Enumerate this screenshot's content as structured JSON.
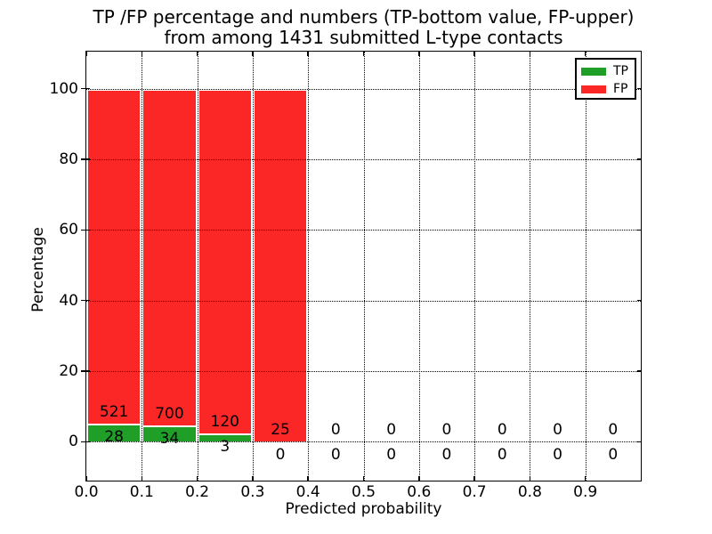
{
  "title": {
    "line1": "TP /FP percentage and numbers (TP-bottom value, FP-upper)",
    "line2": "from among 1431 submitted L-type contacts"
  },
  "chart_data": {
    "type": "bar",
    "stacked": true,
    "percent_normalized": true,
    "title": "TP /FP percentage and numbers (TP-bottom value, FP-upper) from among 1431 submitted L-type contacts",
    "xlabel": "Predicted probability",
    "ylabel": "Percentage",
    "total_submitted_contacts": 1431,
    "bin_edges": [
      0.0,
      0.1,
      0.2,
      0.3,
      0.4,
      0.5,
      0.6,
      0.7,
      0.8,
      0.9,
      1.0
    ],
    "x_tick_labels": [
      "0.0",
      "0.1",
      "0.2",
      "0.3",
      "0.4",
      "0.5",
      "0.6",
      "0.7",
      "0.8",
      "0.9"
    ],
    "x_tick_values": [
      0.0,
      0.1,
      0.2,
      0.3,
      0.4,
      0.5,
      0.6,
      0.7,
      0.8,
      0.9
    ],
    "y_tick_labels": [
      "0",
      "20",
      "40",
      "60",
      "80",
      "100"
    ],
    "y_tick_values": [
      0,
      20,
      40,
      60,
      80,
      100
    ],
    "xlim": [
      0.0,
      1.0
    ],
    "ylim": [
      -11,
      110.5
    ],
    "grid": "dotted",
    "bar_edge_color": "#ffffff",
    "series": [
      {
        "name": "TP",
        "color": "#1f9e28",
        "counts": [
          28,
          34,
          3,
          0,
          0,
          0,
          0,
          0,
          0,
          0
        ],
        "percentages": [
          5.1,
          4.63,
          2.44,
          0.0,
          0,
          0,
          0,
          0,
          0,
          0
        ]
      },
      {
        "name": "FP",
        "color": "#fb2626",
        "counts": [
          521,
          700,
          120,
          25,
          0,
          0,
          0,
          0,
          0,
          0
        ],
        "percentages": [
          94.9,
          95.37,
          97.56,
          100.0,
          0,
          0,
          0,
          0,
          0,
          0
        ]
      }
    ],
    "legend": {
      "position": "upper right",
      "items": [
        {
          "label": "TP",
          "color": "#1f9e28"
        },
        {
          "label": "FP",
          "color": "#fb2626"
        }
      ]
    }
  }
}
